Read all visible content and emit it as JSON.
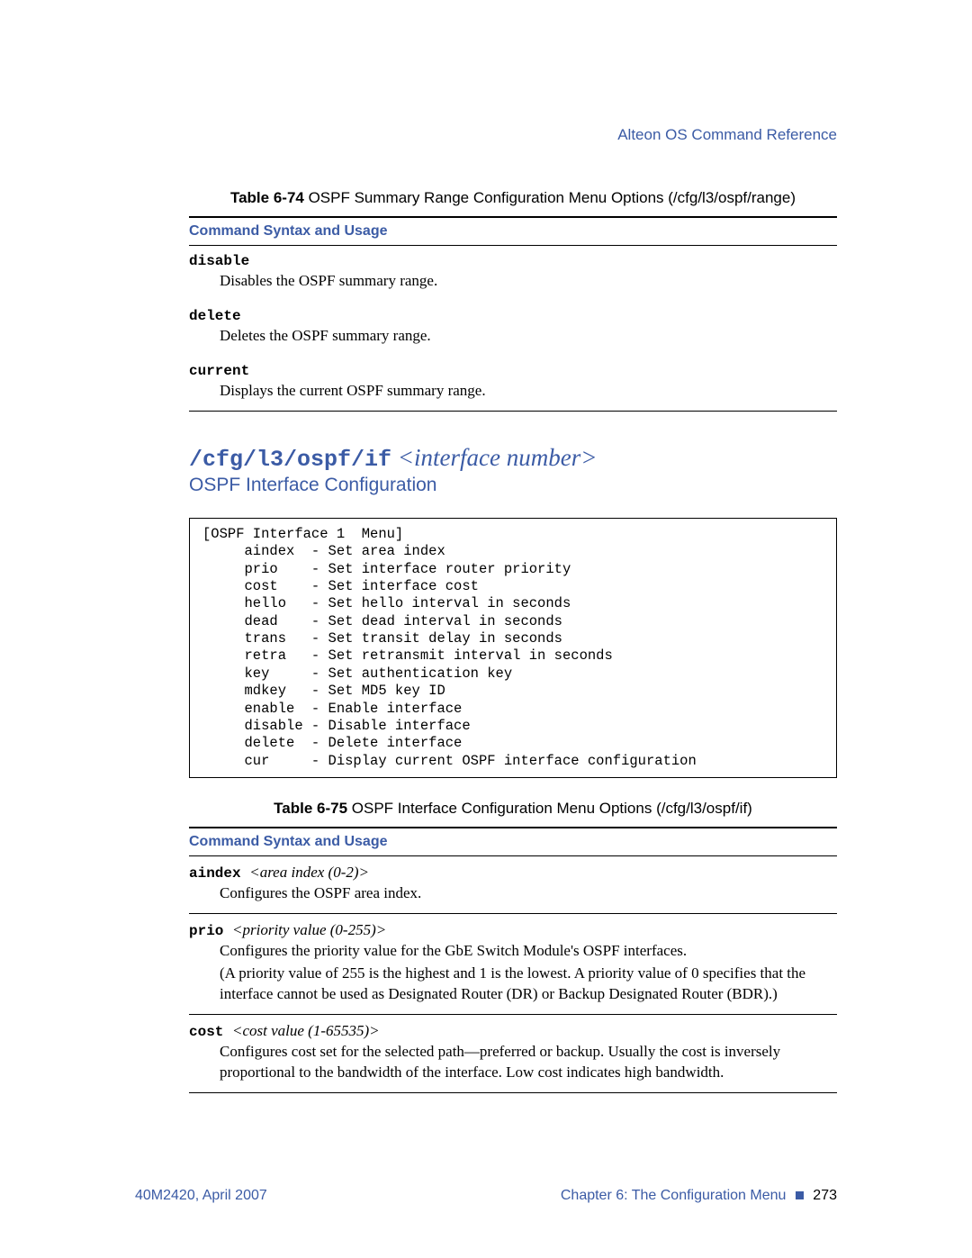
{
  "header": {
    "right": "Alteon OS  Command Reference"
  },
  "table74": {
    "label_bold": "Table 6-74",
    "label_rest": "  OSPF Summary Range Configuration Menu Options (/cfg/l3/ospf/range)",
    "col_header": "Command Syntax and Usage",
    "rows": [
      {
        "cmd": "disable",
        "desc": "Disables the OSPF summary range."
      },
      {
        "cmd": "delete",
        "desc": "Deletes the OSPF summary range."
      },
      {
        "cmd": "current",
        "desc": "Displays the current OSPF summary range."
      }
    ]
  },
  "heading": {
    "path": "/cfg/l3/ospf/if",
    "arg": " <interface number>",
    "sub": "OSPF Interface Configuration"
  },
  "menu": "[OSPF Interface 1  Menu]\n     aindex  - Set area index\n     prio    - Set interface router priority\n     cost    - Set interface cost\n     hello   - Set hello interval in seconds\n     dead    - Set dead interval in seconds\n     trans   - Set transit delay in seconds\n     retra   - Set retransmit interval in seconds\n     key     - Set authentication key\n     mdkey   - Set MD5 key ID\n     enable  - Enable interface\n     disable - Disable interface\n     delete  - Delete interface\n     cur     - Display current OSPF interface configuration",
  "table75": {
    "label_bold": "Table 6-75",
    "label_rest": "  OSPF Interface Configuration Menu Options (/cfg/l3/ospf/if)",
    "col_header": "Command Syntax and Usage",
    "rows": [
      {
        "cmd": "aindex ",
        "param": " <area index (0-2)>",
        "desc": [
          "Configures the OSPF area index."
        ]
      },
      {
        "cmd": "prio ",
        "param": " <priority value (0-255)>",
        "desc": [
          "Configures the priority value for the GbE Switch Module's OSPF interfaces.",
          "(A priority value of 255 is the highest and 1 is the lowest. A priority value of 0 specifies that the interface cannot be used as Designated Router (DR) or Backup Designated Router (BDR).)"
        ]
      },
      {
        "cmd": "cost ",
        "param": " <cost value (1-65535)>",
        "desc": [
          "Configures cost set for the selected path—preferred or backup. Usually the cost is inversely proportional to the bandwidth of the interface. Low cost indicates high bandwidth."
        ]
      }
    ]
  },
  "footer": {
    "left": "40M2420, April 2007",
    "right_chapter": "Chapter 6:  The Configuration Menu",
    "page": "273"
  }
}
